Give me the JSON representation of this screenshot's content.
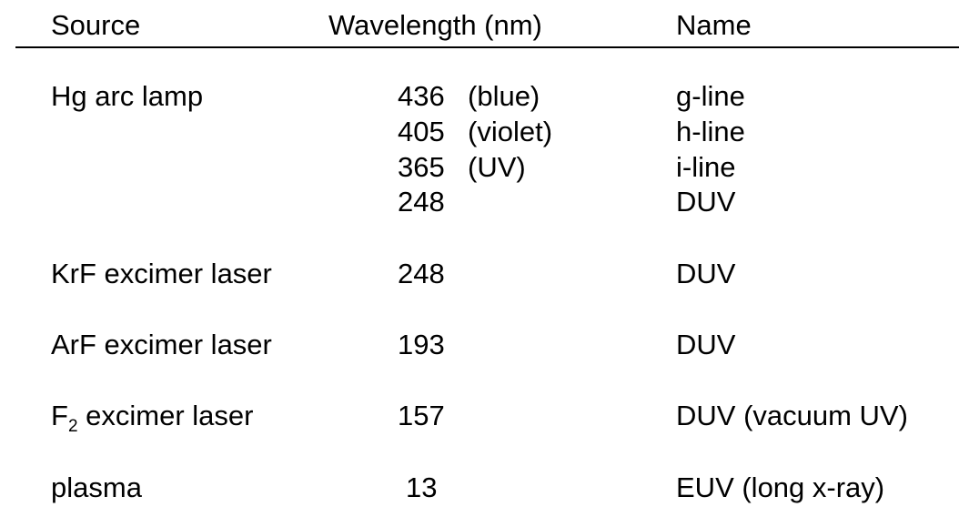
{
  "header": {
    "source": "Source",
    "wavelength": "Wavelength (nm)",
    "name": "Name"
  },
  "rows": [
    {
      "source": "Hg arc lamp",
      "lines": [
        {
          "wavelength": "436",
          "color": "(blue)",
          "name": "g-line"
        },
        {
          "wavelength": "405",
          "color": "(violet)",
          "name": "h-line"
        },
        {
          "wavelength": "365",
          "color": "(UV)",
          "name": "i-line"
        },
        {
          "wavelength": "248",
          "color": "",
          "name": "DUV"
        }
      ]
    },
    {
      "source": "KrF excimer laser",
      "wavelength": "248",
      "name": "DUV"
    },
    {
      "source": "ArF excimer laser",
      "wavelength": "193",
      "name": "DUV"
    },
    {
      "source_main": "F",
      "source_sub": "2",
      "source_rest": " excimer laser",
      "wavelength": "157",
      "name": "DUV (vacuum UV)"
    },
    {
      "source": "plasma",
      "wavelength": "13",
      "name": "EUV (long x-ray)"
    }
  ]
}
